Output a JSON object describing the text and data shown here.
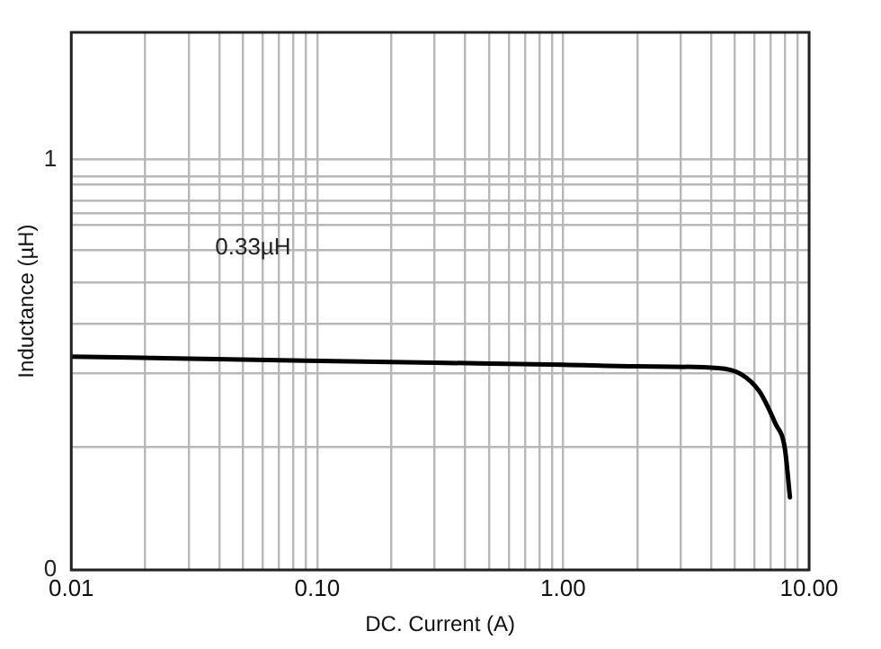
{
  "chart_data": {
    "type": "line",
    "xlabel": "DC. Current (A)",
    "ylabel": "Inductance (µH)",
    "log": "x",
    "grid": true,
    "legend": false,
    "marker": "none",
    "line_style": "solid",
    "xlim": [
      0.01,
      10
    ],
    "xticks": [
      {
        "value": 0.01,
        "label": "0.01"
      },
      {
        "value": 0.02,
        "label": null
      },
      {
        "value": 0.03,
        "label": null
      },
      {
        "value": 0.04,
        "label": null
      },
      {
        "value": 0.05,
        "label": null
      },
      {
        "value": 0.06,
        "label": null
      },
      {
        "value": 0.07,
        "label": null
      },
      {
        "value": 0.08,
        "label": null
      },
      {
        "value": 0.09,
        "label": null
      },
      {
        "value": 0.1,
        "label": "0.10"
      },
      {
        "value": 0.2,
        "label": null
      },
      {
        "value": 0.3,
        "label": null
      },
      {
        "value": 0.4,
        "label": null
      },
      {
        "value": 0.5,
        "label": null
      },
      {
        "value": 0.6,
        "label": null
      },
      {
        "value": 0.7,
        "label": null
      },
      {
        "value": 0.8,
        "label": null
      },
      {
        "value": 0.9,
        "label": null
      },
      {
        "value": 1,
        "label": "1.00"
      },
      {
        "value": 2,
        "label": null
      },
      {
        "value": 3,
        "label": null
      },
      {
        "value": 4,
        "label": null
      },
      {
        "value": 5,
        "label": null
      },
      {
        "value": 6,
        "label": null
      },
      {
        "value": 7,
        "label": null
      },
      {
        "value": 8,
        "label": null
      },
      {
        "value": 9,
        "label": null
      },
      {
        "value": 10,
        "label": "10.00"
      }
    ],
    "ylim": [
      0,
      1.31
    ],
    "yticks": [
      0,
      {
        "value": 0.3,
        "label": null
      },
      {
        "value": 0.48,
        "label": null
      },
      {
        "value": 0.6,
        "label": null
      },
      {
        "value": 0.7,
        "label": null
      },
      {
        "value": 0.78,
        "label": null
      },
      {
        "value": 0.84,
        "label": null
      },
      {
        "value": 0.87,
        "label": null
      },
      {
        "value": 0.9,
        "label": null
      },
      {
        "value": 0.94,
        "label": null
      },
      {
        "value": 0.96,
        "label": null
      },
      1
    ],
    "series": [
      {
        "color": "#000000",
        "x": [
          0.01,
          0.03,
          0.09,
          0.3,
          1,
          2,
          4.27,
          5.26,
          6.28,
          7.29,
          7.97,
          8.36
        ],
        "values": [
          0.52,
          0.515,
          0.51,
          0.505,
          0.5,
          0.496,
          0.492,
          0.478,
          0.435,
          0.357,
          0.296,
          0.177
        ]
      }
    ],
    "annotations": [
      "0.33µH"
    ]
  }
}
